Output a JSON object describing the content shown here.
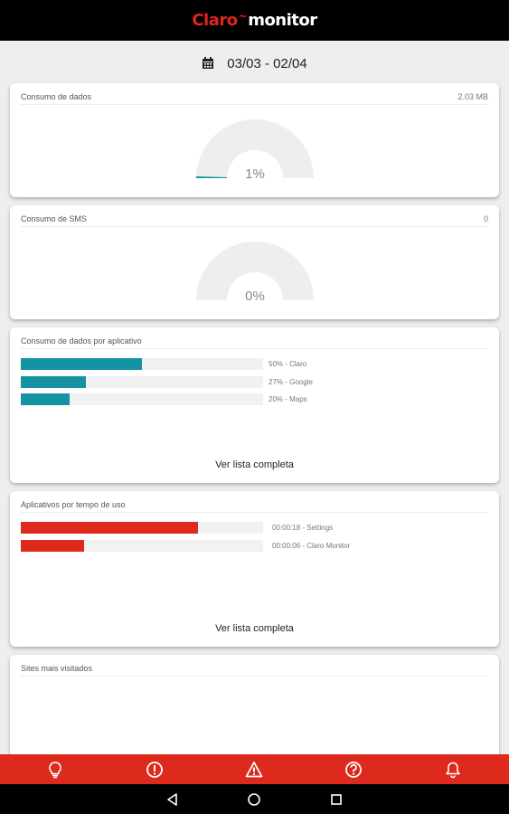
{
  "app": {
    "logo_claro": "Claro",
    "logo_mark": "~",
    "logo_monitor": "monitor"
  },
  "period": {
    "label": "03/03 - 02/04"
  },
  "data_usage": {
    "title": "Consumo de dados",
    "value": "2.03 MB",
    "percent_label": "1%",
    "percent": 1
  },
  "sms_usage": {
    "title": "Consumo de SMS",
    "value": "0",
    "percent_label": "0%",
    "percent": 0
  },
  "apps_data": {
    "title": "Consumo de dados por aplicativo",
    "items": [
      {
        "label": "50% - Claro",
        "percent": 50
      },
      {
        "label": "27% - Google",
        "percent": 27
      },
      {
        "label": "20% - Maps",
        "percent": 20
      }
    ],
    "see_all": "Ver lista completa"
  },
  "apps_time": {
    "title": "Aplicativos por tempo de uso",
    "items": [
      {
        "label": "00:00:18 - Settings",
        "percent": 73
      },
      {
        "label": "00:00:06 - Claro Monitor",
        "percent": 26
      }
    ],
    "see_all": "Ver lista completa"
  },
  "sites": {
    "title": "Sites mais visitados"
  },
  "bottom_nav": {
    "color": "#dd2a1c",
    "icons": [
      "lightbulb-icon",
      "info-icon",
      "warning-icon",
      "help-icon",
      "bell-icon"
    ]
  },
  "colors": {
    "teal": "#1593a3",
    "red": "#dd2a1c",
    "gauge_track": "#eeeeee"
  }
}
